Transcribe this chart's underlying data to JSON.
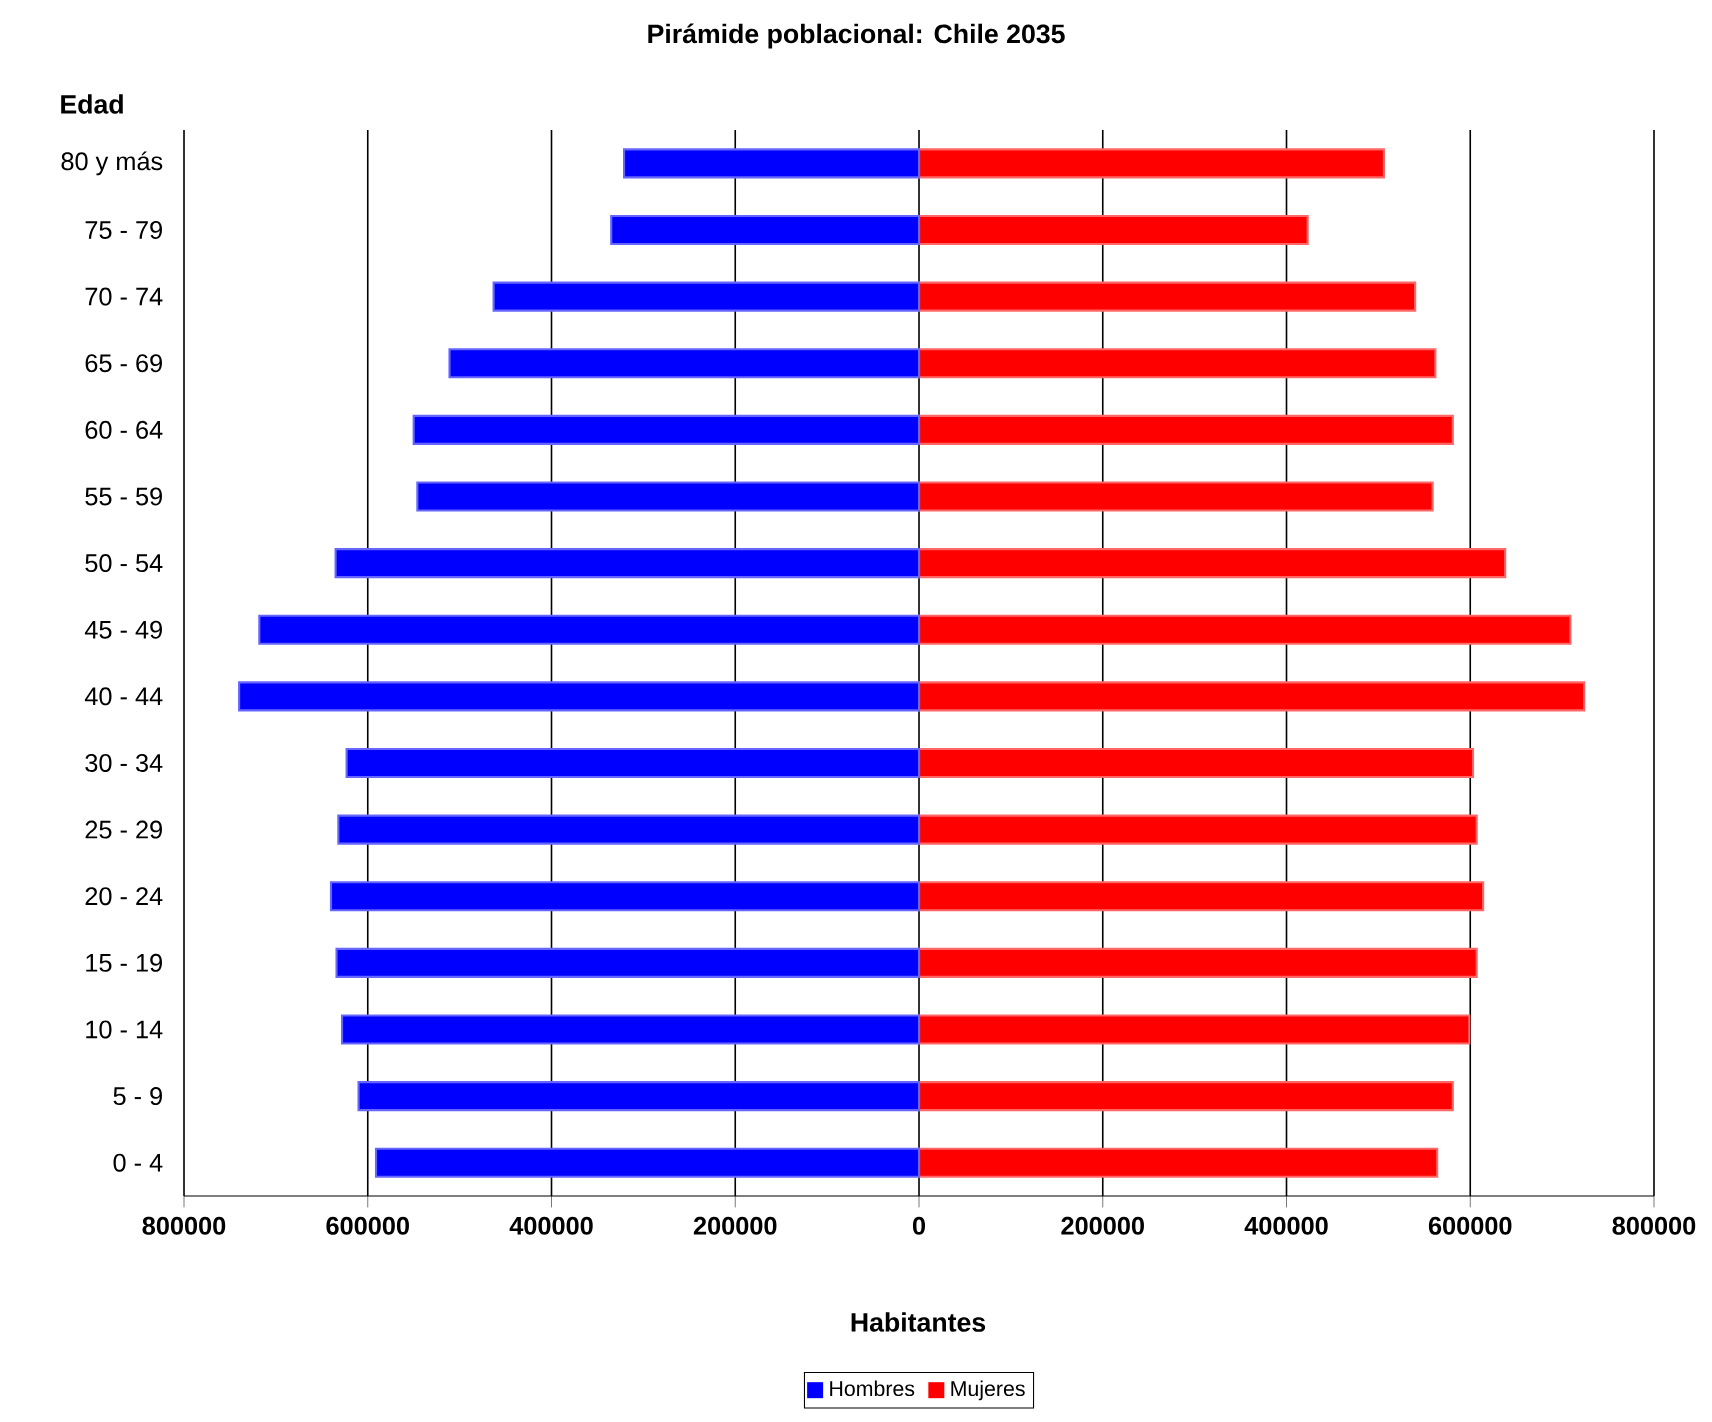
{
  "chart_data": {
    "type": "bar",
    "orientation": "horizontal",
    "title": "Pirámide poblacional: Chile 2035",
    "xlabel": "Habitantes",
    "ylabel": "Edad",
    "categories": [
      "80 y más",
      "75 - 79",
      "70 - 74",
      "65 - 69",
      "60 - 64",
      "55 - 59",
      "50 - 54",
      "45 - 49",
      "40 - 44",
      "30 - 34",
      "25 - 29",
      "20 - 24",
      "15 - 19",
      "10 - 14",
      "5 - 9",
      "0 - 4"
    ],
    "series": [
      {
        "name": "Hombres",
        "color": "#0000ff",
        "values": [
          -321000,
          -335000,
          -463000,
          -511000,
          -550000,
          -546000,
          -635000,
          -718000,
          -740000,
          -623000,
          -632000,
          -640000,
          -634000,
          -628000,
          -610000,
          -591000
        ]
      },
      {
        "name": "Mujeres",
        "color": "#ff0000",
        "values": [
          506000,
          423000,
          540000,
          562000,
          581000,
          559000,
          638000,
          709000,
          724000,
          603000,
          607000,
          614000,
          607000,
          599000,
          581000,
          564000
        ]
      }
    ],
    "xlim": [
      -800000,
      800000
    ],
    "xticks": [
      {
        "value": -800000,
        "label": "800000"
      },
      {
        "value": -600000,
        "label": "600000"
      },
      {
        "value": -400000,
        "label": "400000"
      },
      {
        "value": -200000,
        "label": "200000"
      },
      0,
      200000,
      400000,
      600000,
      800000
    ],
    "grid": "x",
    "legend": "bottom",
    "stacked": true
  }
}
